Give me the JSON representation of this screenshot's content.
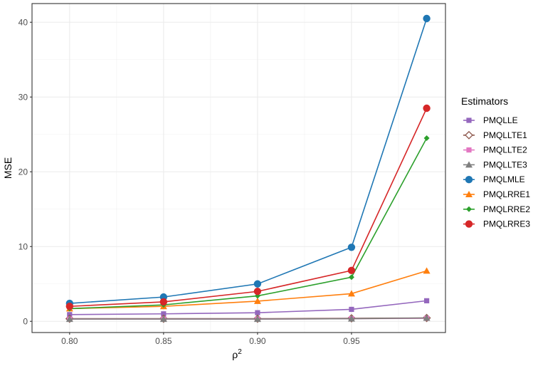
{
  "chart_data": {
    "type": "line",
    "xlabel": "ρ",
    "xlabel_superscript": "2",
    "ylabel": "MSE",
    "x": [
      0.8,
      0.85,
      0.9,
      0.95,
      0.99
    ],
    "xlim": [
      0.78,
      1.0
    ],
    "ylim": [
      -1.5,
      42.5
    ],
    "x_ticks": [
      0.8,
      0.85,
      0.9,
      0.95
    ],
    "x_tick_labels": [
      "0.80",
      "0.85",
      "0.90",
      "0.95"
    ],
    "y_ticks": [
      0,
      10,
      20,
      30,
      40
    ],
    "y_tick_labels": [
      "0",
      "10",
      "20",
      "30",
      "40"
    ],
    "grid": true,
    "legend_title": "Estimators",
    "legend_position": "right",
    "series": [
      {
        "name": "PMQLLE",
        "color": "#9467bd",
        "marker": "square",
        "values": [
          0.9,
          1.0,
          1.15,
          1.6,
          2.75
        ]
      },
      {
        "name": "PMQLLTE1",
        "color": "#8c564b",
        "marker": "diamond-open",
        "values": [
          0.35,
          0.35,
          0.35,
          0.4,
          0.45
        ]
      },
      {
        "name": "PMQLLTE2",
        "color": "#e377c2",
        "marker": "square",
        "values": [
          0.3,
          0.3,
          0.3,
          0.35,
          0.4
        ]
      },
      {
        "name": "PMQLLTE3",
        "color": "#7f7f7f",
        "marker": "triangle",
        "values": [
          0.3,
          0.3,
          0.3,
          0.35,
          0.45
        ]
      },
      {
        "name": "PMQLMLE",
        "color": "#1f77b4",
        "marker": "circle",
        "values": [
          2.4,
          3.25,
          5.0,
          9.9,
          40.5
        ]
      },
      {
        "name": "PMQLRRE1",
        "color": "#ff7f0e",
        "marker": "triangle",
        "values": [
          1.7,
          2.0,
          2.7,
          3.7,
          6.75
        ]
      },
      {
        "name": "PMQLRRE2",
        "color": "#2ca02c",
        "marker": "diamond",
        "values": [
          1.7,
          2.2,
          3.4,
          5.9,
          24.5
        ]
      },
      {
        "name": "PMQLRRE3",
        "color": "#d62728",
        "marker": "circle",
        "values": [
          2.0,
          2.6,
          4.0,
          6.8,
          28.5
        ]
      }
    ]
  }
}
